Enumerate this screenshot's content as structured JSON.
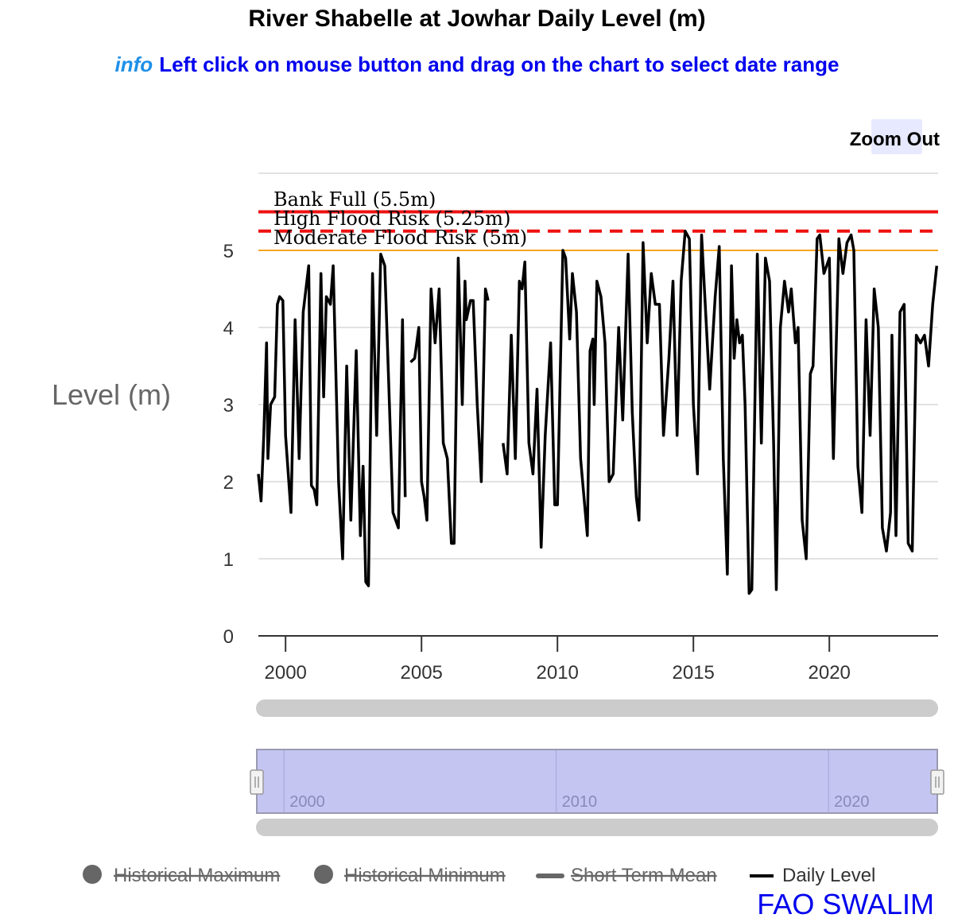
{
  "header": {
    "title": "River Shabelle at Jowhar Daily Level (m)",
    "info_word": "info",
    "info_text": "Left click on mouse button and drag on the chart to select date range"
  },
  "zoom": {
    "label": "Zoom Out"
  },
  "credit": "FAO SWALIM",
  "chart_data": {
    "type": "line",
    "title": "River Shabelle at Jowhar Daily Level (m)",
    "ylabel": "Level (m)",
    "xlabel": "",
    "xlim": [
      1999.0,
      2024.0
    ],
    "ylim": [
      0,
      6
    ],
    "y_ticks": [
      0,
      1,
      2,
      3,
      4,
      5
    ],
    "x_ticks": [
      2000,
      2005,
      2010,
      2015,
      2020
    ],
    "navigator_ticks": [
      2000,
      2010,
      2020
    ],
    "grid": true,
    "legend_placement": "bottom",
    "thresholds": [
      {
        "label": "Bank Full (5.5m)",
        "value": 5.5,
        "color": "#ee1111",
        "style": "solid"
      },
      {
        "label": "High Flood Risk (5.25m)",
        "value": 5.25,
        "color": "#ee1111",
        "style": "dashed"
      },
      {
        "label": "Moderate Flood Risk (5m)",
        "value": 5.0,
        "color": "#f5a623",
        "style": "solid"
      }
    ],
    "legend": [
      {
        "name": "Historical Maximum",
        "symbol": "circle",
        "visible": false
      },
      {
        "name": "Historical Minimum",
        "symbol": "circle",
        "visible": false
      },
      {
        "name": "Short Term Mean",
        "symbol": "line",
        "visible": false
      },
      {
        "name": "Daily Level",
        "symbol": "line",
        "visible": true
      }
    ],
    "series": [
      {
        "name": "Daily Level",
        "color": "#000000",
        "segments": [
          [
            [
              1999.0,
              2.1
            ],
            [
              1999.1,
              1.75
            ],
            [
              1999.2,
              2.6
            ],
            [
              1999.3,
              3.8
            ],
            [
              1999.35,
              2.3
            ],
            [
              1999.45,
              3.0
            ],
            [
              1999.6,
              3.1
            ],
            [
              1999.7,
              4.3
            ],
            [
              1999.78,
              4.4
            ],
            [
              1999.9,
              4.35
            ],
            [
              2000.0,
              2.6
            ],
            [
              2000.2,
              1.6
            ],
            [
              2000.35,
              4.1
            ],
            [
              2000.5,
              2.3
            ],
            [
              2000.65,
              4.2
            ],
            [
              2000.85,
              4.8
            ],
            [
              2000.95,
              1.95
            ],
            [
              2001.05,
              1.9
            ],
            [
              2001.15,
              1.7
            ],
            [
              2001.3,
              4.7
            ],
            [
              2001.4,
              3.1
            ],
            [
              2001.5,
              4.4
            ],
            [
              2001.65,
              4.3
            ],
            [
              2001.75,
              4.8
            ],
            [
              2001.95,
              2.0
            ],
            [
              2002.1,
              1.0
            ],
            [
              2002.25,
              3.5
            ],
            [
              2002.4,
              1.5
            ],
            [
              2002.6,
              3.7
            ],
            [
              2002.75,
              1.3
            ],
            [
              2002.85,
              2.2
            ],
            [
              2002.95,
              0.7
            ],
            [
              2003.05,
              0.65
            ],
            [
              2003.2,
              4.7
            ],
            [
              2003.35,
              2.6
            ],
            [
              2003.5,
              4.95
            ],
            [
              2003.65,
              4.8
            ],
            [
              2003.8,
              3.2
            ],
            [
              2003.95,
              1.6
            ],
            [
              2004.15,
              1.4
            ],
            [
              2004.3,
              4.1
            ],
            [
              2004.4,
              1.8
            ]
          ],
          [
            [
              2004.6,
              3.55
            ],
            [
              2004.75,
              3.6
            ],
            [
              2004.9,
              4.0
            ],
            [
              2005.0,
              2.0
            ],
            [
              2005.1,
              1.8
            ],
            [
              2005.2,
              1.5
            ],
            [
              2005.35,
              4.5
            ],
            [
              2005.5,
              3.8
            ],
            [
              2005.65,
              4.5
            ],
            [
              2005.8,
              2.5
            ],
            [
              2005.95,
              2.3
            ],
            [
              2006.1,
              1.2
            ],
            [
              2006.2,
              1.2
            ],
            [
              2006.35,
              4.9
            ],
            [
              2006.5,
              3.0
            ],
            [
              2006.6,
              4.6
            ],
            [
              2006.65,
              4.1
            ],
            [
              2006.8,
              4.35
            ],
            [
              2006.9,
              4.35
            ],
            [
              2007.05,
              3.0
            ],
            [
              2007.2,
              2.0
            ],
            [
              2007.35,
              4.5
            ],
            [
              2007.45,
              4.35
            ]
          ],
          [
            [
              2008.0,
              2.5
            ],
            [
              2008.15,
              2.1
            ],
            [
              2008.3,
              3.9
            ],
            [
              2008.45,
              2.3
            ],
            [
              2008.6,
              4.6
            ],
            [
              2008.7,
              4.5
            ],
            [
              2008.8,
              4.85
            ],
            [
              2008.95,
              2.5
            ],
            [
              2009.1,
              2.1
            ],
            [
              2009.25,
              3.2
            ],
            [
              2009.4,
              1.15
            ],
            [
              2009.55,
              2.6
            ],
            [
              2009.75,
              3.8
            ],
            [
              2009.9,
              1.7
            ],
            [
              2010.0,
              1.7
            ],
            [
              2010.2,
              5.0
            ],
            [
              2010.3,
              4.9
            ],
            [
              2010.45,
              3.85
            ],
            [
              2010.55,
              4.7
            ],
            [
              2010.7,
              4.2
            ],
            [
              2010.85,
              2.3
            ],
            [
              2011.0,
              1.7
            ],
            [
              2011.1,
              1.3
            ],
            [
              2011.2,
              3.7
            ],
            [
              2011.3,
              3.85
            ],
            [
              2011.35,
              3.0
            ],
            [
              2011.45,
              4.6
            ],
            [
              2011.6,
              4.4
            ],
            [
              2011.75,
              3.8
            ],
            [
              2011.9,
              2.0
            ],
            [
              2012.05,
              2.1
            ],
            [
              2012.25,
              4.0
            ],
            [
              2012.4,
              2.8
            ],
            [
              2012.6,
              4.95
            ],
            [
              2012.75,
              2.9
            ],
            [
              2012.9,
              1.8
            ],
            [
              2013.0,
              1.5
            ],
            [
              2013.15,
              5.1
            ],
            [
              2013.3,
              3.8
            ],
            [
              2013.45,
              4.7
            ],
            [
              2013.6,
              4.3
            ],
            [
              2013.75,
              4.3
            ],
            [
              2013.9,
              2.6
            ],
            [
              2014.1,
              3.6
            ],
            [
              2014.25,
              4.6
            ],
            [
              2014.4,
              2.6
            ],
            [
              2014.55,
              4.6
            ],
            [
              2014.7,
              5.25
            ],
            [
              2014.85,
              5.15
            ],
            [
              2015.0,
              3.0
            ],
            [
              2015.15,
              2.1
            ],
            [
              2015.3,
              5.2
            ],
            [
              2015.45,
              4.2
            ],
            [
              2015.6,
              3.2
            ],
            [
              2015.8,
              4.4
            ],
            [
              2015.95,
              5.05
            ],
            [
              2016.1,
              2.3
            ],
            [
              2016.25,
              0.8
            ],
            [
              2016.4,
              4.8
            ],
            [
              2016.5,
              3.6
            ],
            [
              2016.6,
              4.1
            ],
            [
              2016.7,
              3.8
            ],
            [
              2016.8,
              3.9
            ],
            [
              2016.9,
              3.0
            ],
            [
              2017.05,
              0.55
            ],
            [
              2017.15,
              0.6
            ],
            [
              2017.35,
              4.95
            ],
            [
              2017.5,
              2.5
            ],
            [
              2017.65,
              4.9
            ],
            [
              2017.8,
              4.6
            ],
            [
              2017.95,
              2.5
            ],
            [
              2018.05,
              0.6
            ],
            [
              2018.2,
              4.0
            ],
            [
              2018.35,
              4.6
            ],
            [
              2018.5,
              4.2
            ],
            [
              2018.6,
              4.5
            ],
            [
              2018.75,
              3.8
            ],
            [
              2018.85,
              4.0
            ],
            [
              2019.0,
              1.5
            ],
            [
              2019.15,
              1.0
            ],
            [
              2019.3,
              3.4
            ],
            [
              2019.4,
              3.5
            ],
            [
              2019.55,
              5.15
            ],
            [
              2019.65,
              5.2
            ],
            [
              2019.8,
              4.7
            ],
            [
              2020.0,
              4.9
            ],
            [
              2020.15,
              2.3
            ],
            [
              2020.35,
              5.15
            ],
            [
              2020.5,
              4.7
            ],
            [
              2020.65,
              5.1
            ],
            [
              2020.8,
              5.2
            ],
            [
              2020.9,
              5.0
            ],
            [
              2021.05,
              2.2
            ],
            [
              2021.2,
              1.6
            ],
            [
              2021.35,
              4.1
            ],
            [
              2021.5,
              2.6
            ],
            [
              2021.65,
              4.5
            ],
            [
              2021.8,
              4.0
            ],
            [
              2021.95,
              1.4
            ],
            [
              2022.1,
              1.1
            ],
            [
              2022.25,
              1.6
            ],
            [
              2022.3,
              3.9
            ],
            [
              2022.45,
              1.3
            ],
            [
              2022.6,
              4.2
            ],
            [
              2022.75,
              4.3
            ],
            [
              2022.9,
              1.2
            ],
            [
              2023.05,
              1.1
            ],
            [
              2023.2,
              3.9
            ],
            [
              2023.35,
              3.8
            ],
            [
              2023.5,
              3.9
            ],
            [
              2023.65,
              3.5
            ],
            [
              2023.8,
              4.3
            ],
            [
              2023.95,
              4.8
            ]
          ]
        ]
      }
    ]
  }
}
